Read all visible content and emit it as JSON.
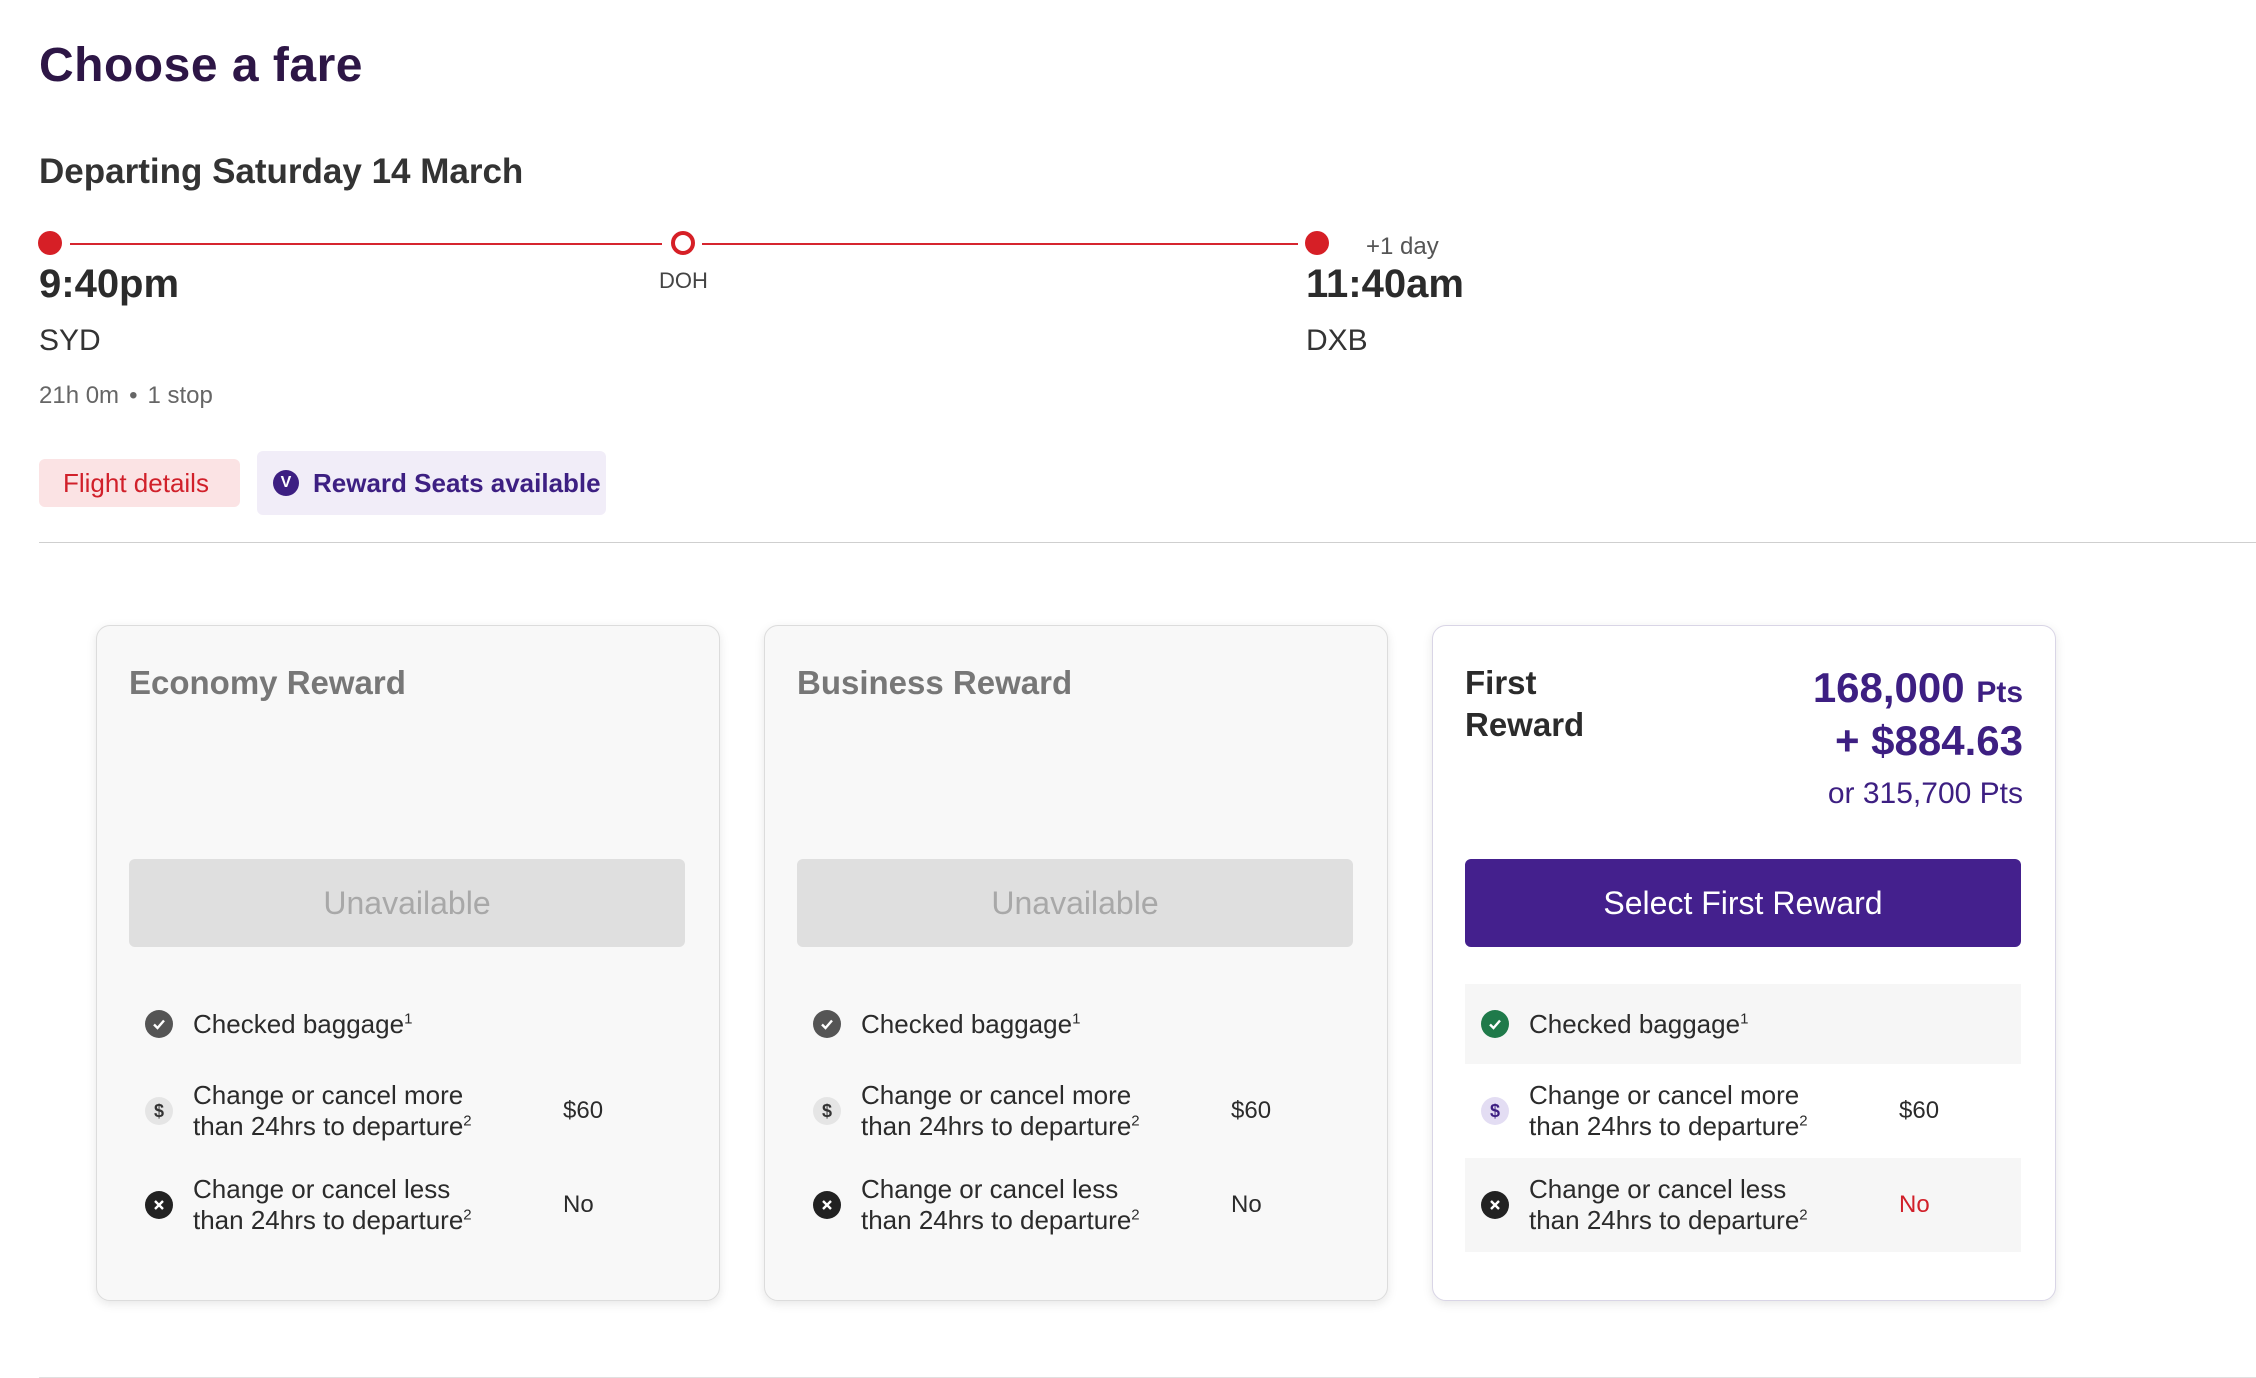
{
  "page": {
    "title": "Choose a fare"
  },
  "flight": {
    "departing_label": "Departing Saturday 14 March",
    "departure_time": "9:40pm",
    "origin": "SYD",
    "stop": "DOH",
    "arrival_offset": "+1 day",
    "arrival_time": "11:40am",
    "destination": "DXB",
    "duration": "21h 0m",
    "separator": "•",
    "stops": "1 stop",
    "route_color": "#d61f26"
  },
  "chips": {
    "details_label": "Flight details",
    "reward_icon": "V",
    "reward_label": "Reward Seats available"
  },
  "features_labels": {
    "baggage": "Checked baggage",
    "baggage_sup": "1",
    "change_more_line1": "Change or cancel more",
    "change_more_line2": "than 24hrs to departure",
    "change_less_line1": "Change or cancel less",
    "change_less_line2": "than 24hrs to departure",
    "change_sup": "2"
  },
  "fares": [
    {
      "name": "Economy Reward",
      "button_label": "Unavailable",
      "button_state": "disabled",
      "change_more_value": "$60",
      "change_less_value": "No"
    },
    {
      "name": "Business Reward",
      "button_label": "Unavailable",
      "button_state": "disabled",
      "change_more_value": "$60",
      "change_less_value": "No"
    },
    {
      "name": "First Reward",
      "price_points": "168,000",
      "price_points_unit": "Pts",
      "price_cash": "+ $884.63",
      "price_alt": "or 315,700 Pts",
      "button_label": "Select First Reward",
      "button_state": "enabled",
      "change_more_value": "$60",
      "change_less_value": "No"
    }
  ],
  "colors": {
    "brand_purple": "#44208d",
    "title_purple": "#2d1646",
    "alert_red": "#d1202a"
  },
  "icons": {
    "check": "check-circle-icon",
    "dollar": "dollar-circle-icon",
    "cross": "cross-circle-icon"
  }
}
